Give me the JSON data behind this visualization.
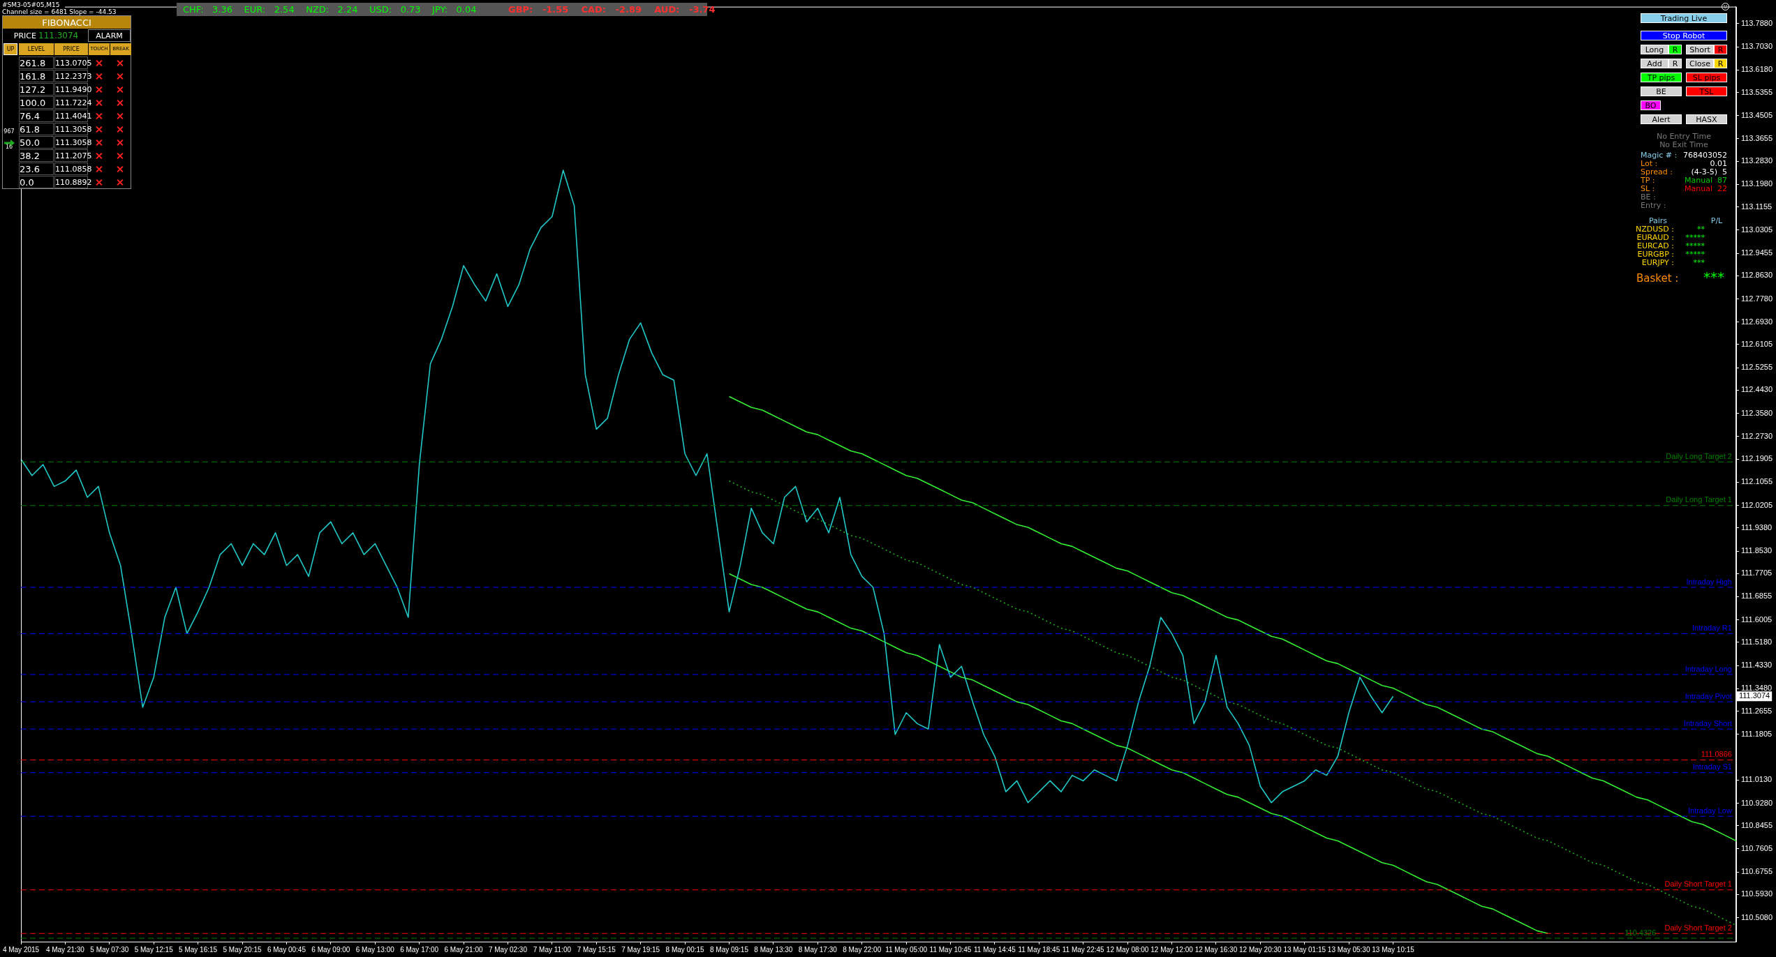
{
  "chart_data": {
    "type": "line",
    "marker": "none",
    "categories": [
      "4 May 2015",
      null,
      null,
      null,
      "4 May 21:30",
      null,
      null,
      null,
      "5 May 07:30",
      null,
      null,
      null,
      "5 May 12:15",
      null,
      null,
      null,
      "5 May 16:15",
      null,
      null,
      null,
      "5 May 20:15",
      null,
      null,
      null,
      "6 May 00:45",
      null,
      null,
      null,
      "6 May 09:00",
      null,
      null,
      null,
      "6 May 13:00",
      null,
      null,
      null,
      "6 May 17:00",
      null,
      null,
      null,
      "6 May 21:00",
      null,
      null,
      null,
      "7 May 02:30",
      null,
      null,
      null,
      "7 May 11:00",
      null,
      null,
      null,
      "7 May 15:15",
      null,
      null,
      null,
      "7 May 19:15",
      null,
      null,
      null,
      "8 May 00:15",
      null,
      null,
      null,
      "8 May 09:15",
      null,
      null,
      null,
      "8 May 13:30",
      null,
      null,
      null,
      "8 May 17:30",
      null,
      null,
      null,
      "8 May 22:00",
      null,
      null,
      null,
      "11 May 05:00",
      null,
      null,
      null,
      "11 May 10:45",
      null,
      null,
      null,
      "11 May 14:45",
      null,
      null,
      null,
      "11 May 18:45",
      null,
      null,
      null,
      "11 May 22:45",
      null,
      null,
      null,
      "12 May 08:00",
      null,
      null,
      null,
      "12 May 12:00",
      null,
      null,
      null,
      "12 May 16:30",
      null,
      null,
      null,
      "12 May 20:30",
      null,
      null,
      null,
      "13 May 01:15",
      null,
      null,
      null,
      "13 May 05:30",
      null,
      null,
      null,
      "13 May 10:15",
      null,
      null,
      null,
      null,
      null,
      null,
      null,
      null,
      null,
      null,
      null,
      null,
      null,
      null,
      null,
      null,
      null,
      null,
      null,
      null,
      null,
      null,
      null,
      null,
      null,
      null,
      null,
      null,
      null,
      null,
      null
    ],
    "ylim": [
      110.42,
      113.85
    ],
    "yticks": [
      {
        "value": 113.788,
        "label": "113.7880"
      },
      {
        "value": 113.703,
        "label": "113.7030"
      },
      {
        "value": 113.618,
        "label": "113.6180"
      },
      113.5355,
      113.4505,
      113.3655,
      {
        "value": 113.283,
        "label": "113.2830"
      },
      {
        "value": 113.198,
        "label": "113.1980"
      },
      113.1155,
      113.0305,
      112.9455,
      {
        "value": 112.863,
        "label": "112.8630"
      },
      {
        "value": 112.778,
        "label": "112.7780"
      },
      {
        "value": 112.693,
        "label": "112.6930"
      },
      112.6105,
      112.5255,
      {
        "value": 112.443,
        "label": "112.4430"
      },
      {
        "value": 112.358,
        "label": "112.3580"
      },
      {
        "value": 112.273,
        "label": "112.2730"
      },
      112.1905,
      112.1055,
      112.0205,
      {
        "value": 111.938,
        "label": "111.9380"
      },
      {
        "value": 111.853,
        "label": "111.8530"
      },
      111.7705,
      111.6855,
      111.6005,
      {
        "value": 111.518,
        "label": "111.5180"
      },
      {
        "value": 111.433,
        "label": "111.4330"
      },
      {
        "value": 111.348,
        "label": "111.3480"
      },
      111.2655,
      111.1805,
      {
        "value": 111.013,
        "label": "111.0130"
      },
      {
        "value": 110.928,
        "label": "110.9280"
      },
      110.8455,
      110.7605,
      110.6755,
      {
        "value": 110.593,
        "label": "110.5930"
      },
      {
        "value": 110.508,
        "label": "110.5080"
      }
    ],
    "series": [
      {
        "color": "#20c8c8",
        "values": [
          112.19,
          112.13,
          112.17,
          112.09,
          112.11,
          112.15,
          112.05,
          112.09,
          111.92,
          111.8,
          111.55,
          111.28,
          111.39,
          111.61,
          111.72,
          111.55,
          111.63,
          111.72,
          111.84,
          111.88,
          111.8,
          111.88,
          111.84,
          111.92,
          111.8,
          111.84,
          111.76,
          111.92,
          111.96,
          111.88,
          111.92,
          111.84,
          111.88,
          111.8,
          111.72,
          111.61,
          112.17,
          112.54,
          112.63,
          112.75,
          112.9,
          112.83,
          112.77,
          112.87,
          112.75,
          112.83,
          112.96,
          113.04,
          113.08,
          113.25,
          113.12,
          112.5,
          112.3,
          112.34,
          112.5,
          112.63,
          112.69,
          112.58,
          112.5,
          112.48,
          112.21,
          112.13,
          112.21,
          111.92,
          111.63,
          111.8,
          112.01,
          111.92,
          111.88,
          112.05,
          112.09,
          111.96,
          112.01,
          111.92,
          112.05,
          111.84,
          111.76,
          111.72,
          111.55,
          111.18,
          111.26,
          111.22,
          111.2,
          111.51,
          111.39,
          111.43,
          111.3,
          111.18,
          111.1,
          110.97,
          111.01,
          110.93,
          110.97,
          111.01,
          110.97,
          111.03,
          111.01,
          111.05,
          111.03,
          111.01,
          111.14,
          111.3,
          111.43,
          111.61,
          111.55,
          111.47,
          111.22,
          111.3,
          111.47,
          111.28,
          111.22,
          111.14,
          110.99,
          110.93,
          110.97,
          110.99,
          111.01,
          111.05,
          111.03,
          111.1,
          111.26,
          111.39,
          111.32,
          111.26,
          111.32,
          null,
          null,
          null,
          null,
          null,
          null,
          null,
          null,
          null,
          null,
          null,
          null,
          null,
          null,
          null,
          null,
          null,
          null,
          null,
          null,
          null,
          null,
          null,
          null,
          null,
          null,
          null,
          null,
          null,
          null,
          null
        ]
      },
      {
        "color": "#33ee33",
        "values": [
          null,
          null,
          null,
          null,
          null,
          null,
          null,
          null,
          null,
          null,
          null,
          null,
          null,
          null,
          null,
          null,
          null,
          null,
          null,
          null,
          null,
          null,
          null,
          null,
          null,
          null,
          null,
          null,
          null,
          null,
          null,
          null,
          null,
          null,
          null,
          null,
          null,
          null,
          null,
          null,
          null,
          null,
          null,
          null,
          null,
          null,
          null,
          null,
          null,
          null,
          null,
          null,
          null,
          null,
          null,
          null,
          null,
          null,
          null,
          null,
          null,
          null,
          null,
          null,
          112.42,
          112.4,
          112.38,
          112.37,
          112.35,
          112.33,
          112.31,
          112.29,
          112.28,
          112.26,
          112.24,
          112.22,
          112.21,
          112.19,
          112.17,
          112.15,
          112.13,
          112.12,
          112.1,
          112.08,
          112.06,
          112.04,
          112.03,
          112.01,
          111.99,
          111.97,
          111.95,
          111.94,
          111.92,
          111.9,
          111.88,
          111.87,
          111.85,
          111.83,
          111.81,
          111.79,
          111.78,
          111.76,
          111.74,
          111.72,
          111.7,
          111.69,
          111.67,
          111.65,
          111.63,
          111.61,
          111.6,
          111.58,
          111.56,
          111.54,
          111.53,
          111.51,
          111.49,
          111.47,
          111.45,
          111.44,
          111.42,
          111.4,
          111.38,
          111.36,
          111.35,
          111.33,
          111.31,
          111.29,
          111.28,
          111.26,
          111.24,
          111.22,
          111.2,
          111.19,
          111.17,
          111.15,
          111.13,
          111.11,
          111.1,
          111.08,
          111.06,
          111.04,
          111.02,
          111.01,
          110.99,
          110.97,
          110.95,
          110.94,
          110.92,
          110.9,
          110.88,
          110.86,
          110.85,
          110.83,
          110.81,
          110.79
        ]
      },
      {
        "color": "#33ee33",
        "values": [
          null,
          null,
          null,
          null,
          null,
          null,
          null,
          null,
          null,
          null,
          null,
          null,
          null,
          null,
          null,
          null,
          null,
          null,
          null,
          null,
          null,
          null,
          null,
          null,
          null,
          null,
          null,
          null,
          null,
          null,
          null,
          null,
          null,
          null,
          null,
          null,
          null,
          null,
          null,
          null,
          null,
          null,
          null,
          null,
          null,
          null,
          null,
          null,
          null,
          null,
          null,
          null,
          null,
          null,
          null,
          null,
          null,
          null,
          null,
          null,
          null,
          null,
          null,
          null,
          111.77,
          111.75,
          111.73,
          111.72,
          111.7,
          111.68,
          111.66,
          111.64,
          111.63,
          111.61,
          111.59,
          111.57,
          111.56,
          111.54,
          111.52,
          111.5,
          111.48,
          111.47,
          111.45,
          111.43,
          111.41,
          111.39,
          111.38,
          111.36,
          111.34,
          111.32,
          111.3,
          111.29,
          111.27,
          111.25,
          111.23,
          111.22,
          111.2,
          111.18,
          111.16,
          111.14,
          111.13,
          111.11,
          111.09,
          111.07,
          111.05,
          111.04,
          111.02,
          111.0,
          110.98,
          110.96,
          110.95,
          110.93,
          110.91,
          110.89,
          110.88,
          110.86,
          110.84,
          110.82,
          110.8,
          110.79,
          110.77,
          110.75,
          110.73,
          110.71,
          110.7,
          110.68,
          110.66,
          110.64,
          110.63,
          110.61,
          110.59,
          110.57,
          110.55,
          110.54,
          110.52,
          110.5,
          110.48,
          110.46,
          110.45,
          null,
          null,
          null,
          null,
          null,
          null,
          null,
          null,
          null,
          null,
          null,
          null,
          null,
          null,
          null,
          null,
          null
        ]
      },
      {
        "color": "#22aa22",
        "line_style": "dotted",
        "values": [
          null,
          null,
          null,
          null,
          null,
          null,
          null,
          null,
          null,
          null,
          null,
          null,
          null,
          null,
          null,
          null,
          null,
          null,
          null,
          null,
          null,
          null,
          null,
          null,
          null,
          null,
          null,
          null,
          null,
          null,
          null,
          null,
          null,
          null,
          null,
          null,
          null,
          null,
          null,
          null,
          null,
          null,
          null,
          null,
          null,
          null,
          null,
          null,
          null,
          null,
          null,
          null,
          null,
          null,
          null,
          null,
          null,
          null,
          null,
          null,
          null,
          null,
          null,
          null,
          112.11,
          112.09,
          112.07,
          112.06,
          112.04,
          112.02,
          112.0,
          111.98,
          111.97,
          111.95,
          111.93,
          111.91,
          111.9,
          111.88,
          111.86,
          111.84,
          111.82,
          111.81,
          111.79,
          111.77,
          111.75,
          111.73,
          111.72,
          111.7,
          111.68,
          111.66,
          111.64,
          111.63,
          111.61,
          111.59,
          111.57,
          111.56,
          111.54,
          111.52,
          111.5,
          111.48,
          111.47,
          111.45,
          111.43,
          111.41,
          111.39,
          111.38,
          111.36,
          111.34,
          111.32,
          111.3,
          111.29,
          111.27,
          111.25,
          111.23,
          111.22,
          111.2,
          111.18,
          111.16,
          111.14,
          111.13,
          111.11,
          111.09,
          111.07,
          111.05,
          111.04,
          111.02,
          111.0,
          110.98,
          110.97,
          110.95,
          110.93,
          110.91,
          110.89,
          110.88,
          110.86,
          110.84,
          110.82,
          110.8,
          110.79,
          110.77,
          110.75,
          110.73,
          110.71,
          110.7,
          110.68,
          110.66,
          110.64,
          110.63,
          110.61,
          110.59,
          110.57,
          110.55,
          110.54,
          110.52,
          110.5,
          110.48
        ]
      }
    ],
    "ref_lines": [
      {
        "axis": "y",
        "value": 112.18,
        "label": "Daily Long Target 2",
        "color": "#008000",
        "line_style": "dashed"
      },
      {
        "axis": "y",
        "value": 112.02,
        "label": "Daily Long Target 1",
        "color": "#008000",
        "line_style": "dashed"
      },
      {
        "axis": "y",
        "value": 111.72,
        "label": "Intraday High",
        "color": "#0000ff",
        "line_style": "dashed"
      },
      {
        "axis": "y",
        "value": 111.55,
        "label": "Intraday R1",
        "color": "#0000ff",
        "line_style": "dashed"
      },
      {
        "axis": "y",
        "value": 111.4,
        "label": "Intraday Long",
        "color": "#0000ff",
        "line_style": "dashed"
      },
      {
        "axis": "y",
        "value": 111.3,
        "label": "Intraday Pivot",
        "color": "#0000ff",
        "line_style": "dashed"
      },
      {
        "axis": "y",
        "value": 111.2,
        "label": "Intraday Short",
        "color": "#0000ff",
        "line_style": "dashed"
      },
      {
        "axis": "y",
        "value": 111.04,
        "label": "Intraday S1",
        "color": "#0000ff",
        "line_style": "dashed"
      },
      {
        "axis": "y",
        "value": 110.88,
        "label": "Intraday Low",
        "color": "#0000ff",
        "line_style": "dashed"
      },
      {
        "axis": "y",
        "value": 110.61,
        "label": "Daily Short Target 1",
        "color": "#ff0000",
        "line_style": "dashed"
      },
      {
        "axis": "y",
        "value": 110.45,
        "label": "Daily Short Target 2",
        "color": "#ff0000",
        "line_style": "dashed"
      },
      {
        "axis": "y",
        "value": 111.0866,
        "label": "111.0866",
        "color": "#ff0000",
        "line_style": "dashed"
      },
      {
        "axis": "y",
        "value": 110.4326,
        "label": "110.4326",
        "color": "#008000",
        "line_style": "dashed"
      }
    ],
    "annotations": [
      "#SM3-05#05,M15",
      "Channel size = 6481 Slope = -44.53",
      "CHF:   3.36    EUR:   2.54    NZD:   2.24    USD:   0.73    JPY:   0.04",
      "GBP:   -1.55    CAD:   -2.89    AUD:   -3.74",
      "FIBONACCI",
      "PRICE",
      "111.3074",
      "ALARM",
      "UP",
      "LEVEL",
      "PRICE",
      "TOUCH",
      "BREAK",
      "261.8",
      "113.0705",
      "161.8",
      "112.2373",
      "127.2",
      "111.9490",
      "100.0",
      "111.7224",
      "76.4",
      "111.4041",
      "61.8",
      "111.3058",
      "50.0",
      "111.3058",
      "38.2",
      "111.2075",
      "23.6",
      "111.0858",
      "0.0",
      "110.8892",
      "967",
      "16",
      "Trading Live",
      "Stop Robot",
      "Long",
      "R",
      "Short",
      "R",
      "Add",
      "R",
      "Close",
      "R",
      "TP pips",
      "SL pips",
      "BE",
      "TSL",
      "BO",
      "Alert",
      "HASX",
      "No Entry Time",
      "No Exit Time",
      "Magic # :",
      "768403052",
      "Lot :",
      "0.01",
      "Spread :",
      "(4-3-5)  5",
      "TP :",
      "Manual  87",
      "SL :",
      "Manual  22",
      "BE :",
      "Entry :",
      "Pairs",
      "P/L",
      "NZDUSD :",
      "**",
      "EURAUD :",
      "*****",
      "EURCAD :",
      "*****",
      "EURGBP :",
      "*****",
      "EURJPY :",
      "***",
      "Basket :",
      "***",
      "111.3074"
    ]
  }
}
